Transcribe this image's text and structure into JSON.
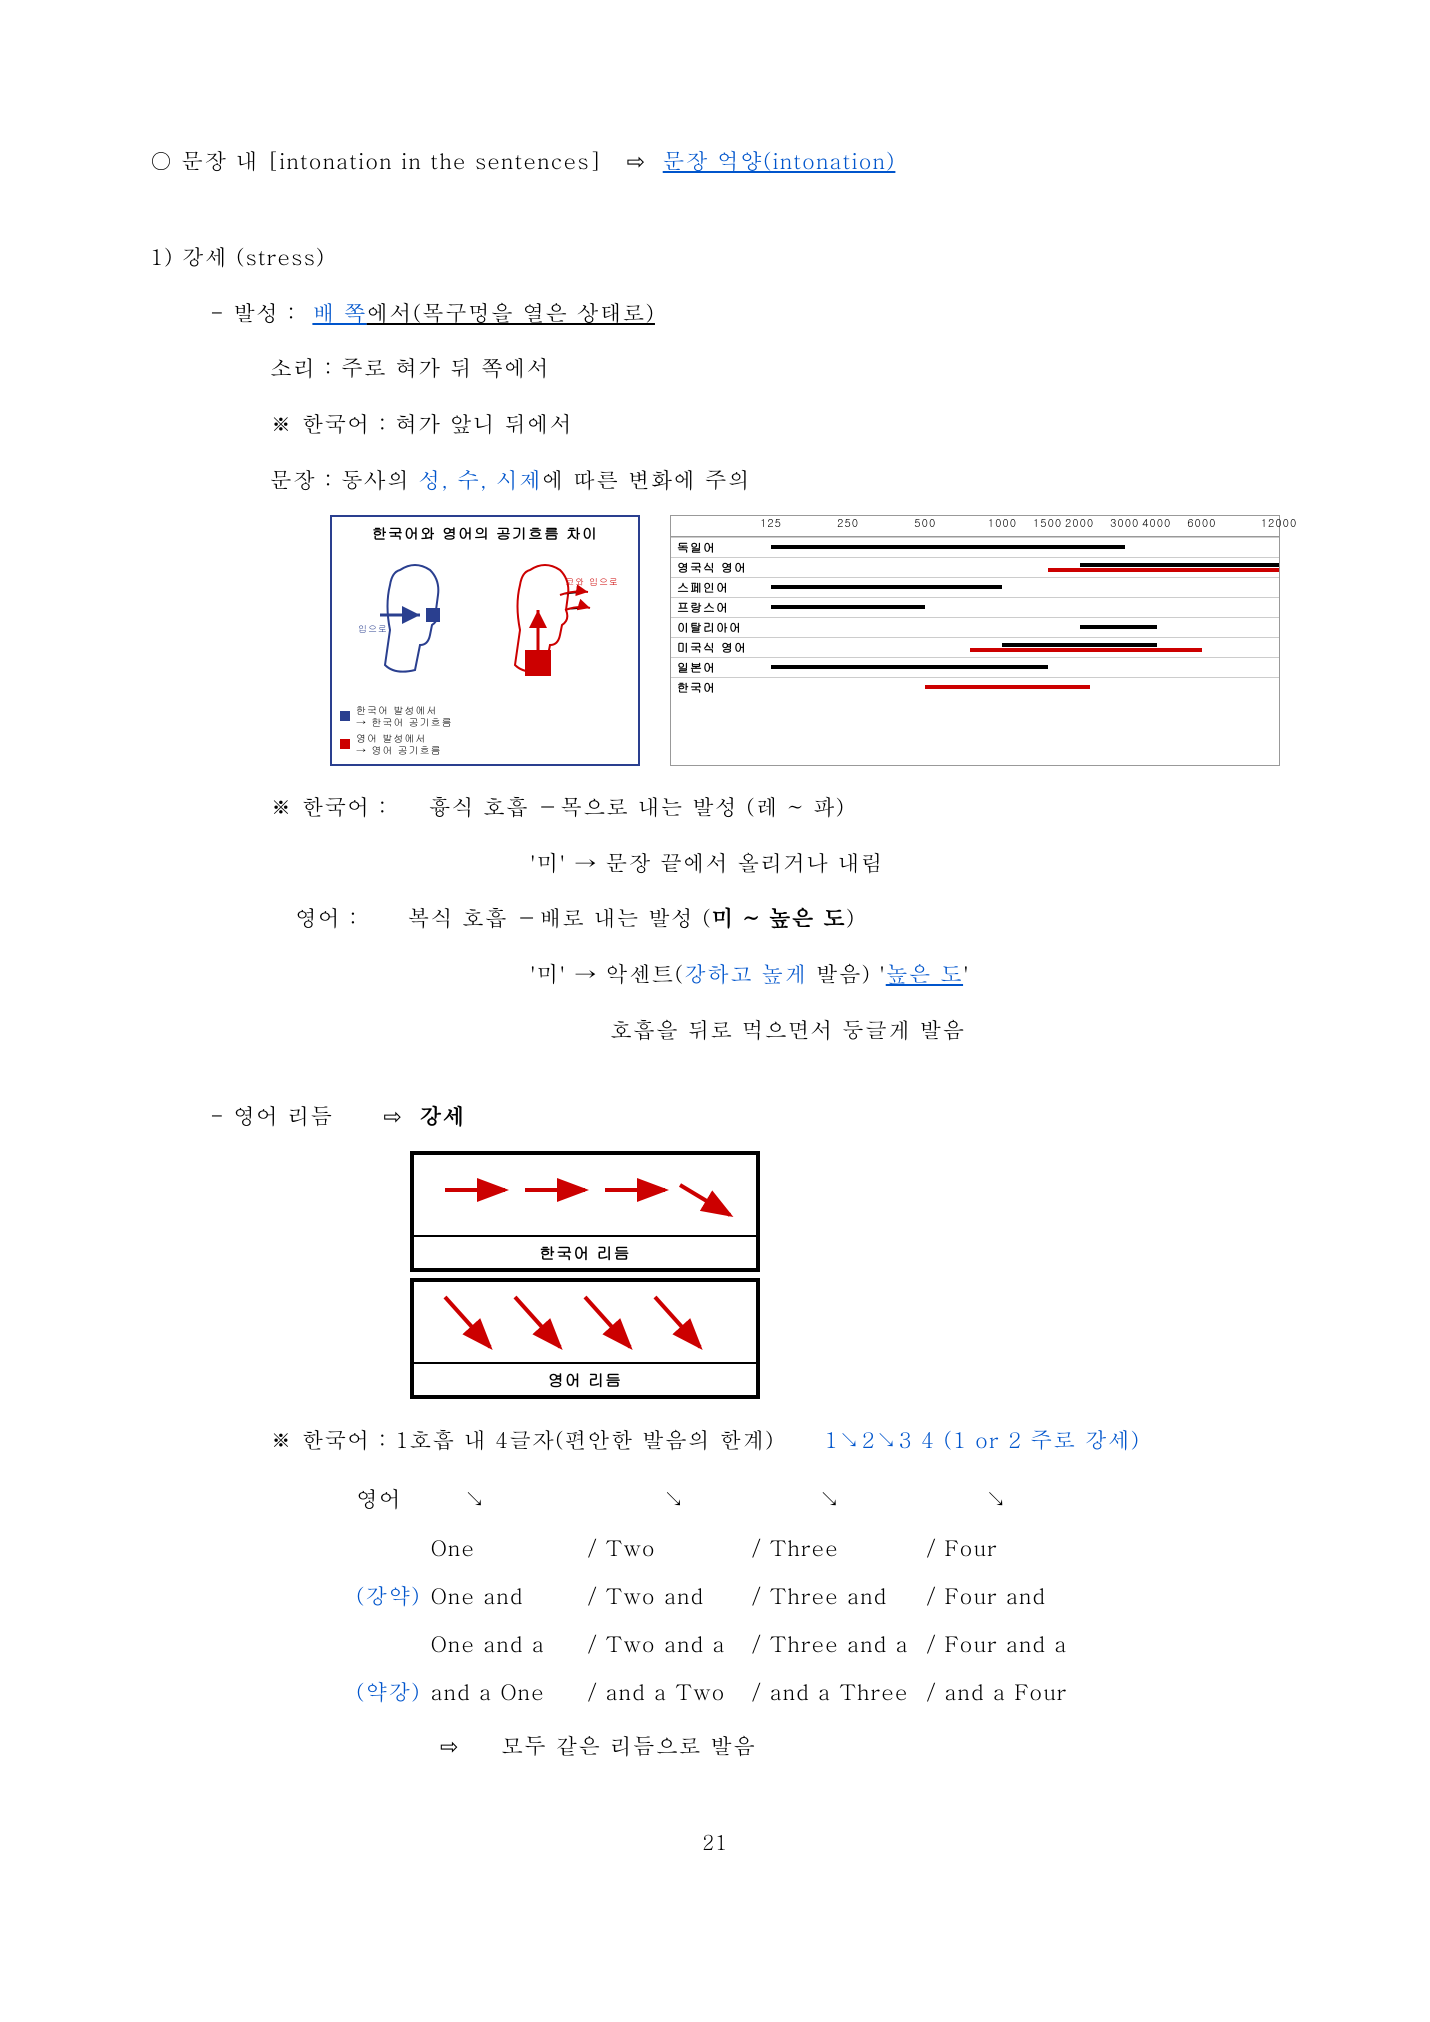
{
  "heading": {
    "bullet": "○",
    "prefix": "문장 내 [intonation in the sentences]",
    "arrow": "⇨",
    "blue_text": "문장 억양(intonation)"
  },
  "section1": {
    "num": "1) 강세 (stress)",
    "voc_label": "-   발성 :",
    "voc_blue": "배 쪽",
    "voc_rest": "에서(목구멍을 열은 상태로)",
    "sound": "소리 :  주로 혀가 뒤 쪽에서",
    "korean_note": "※ 한국어 : 혀가 앞니 뒤에서",
    "sentence_label": "문장 :  동사의 ",
    "sentence_blue": "성, 수, 시제",
    "sentence_rest": "에 따른 변화에 주의"
  },
  "airflow": {
    "title": "한국어와 영어의 공기흐름 차이",
    "left_caption": "입으로 들이마시기",
    "right_caption": "코와 입으로 들이마시기",
    "legend1a": "한국어 발성에서",
    "legend1b": "→ 한국어 공기흐름",
    "legend2a": "영어 발성에서",
    "legend2b": "→ 영어 공기흐름",
    "color_blue": "#2a3f8f",
    "color_red": "#cc0000"
  },
  "rangechart": {
    "ticks": [
      125,
      250,
      500,
      1000,
      1500,
      2000,
      3000,
      4000,
      6000,
      12000
    ],
    "xmin": 125,
    "xmax": 12000,
    "rows": [
      {
        "label": "독일어",
        "bars": [
          {
            "from": 125,
            "to": 3000,
            "color": "#000000"
          }
        ]
      },
      {
        "label": "영국식 영어",
        "bars": [
          {
            "from": 2000,
            "to": 12000,
            "color": "#000000"
          },
          {
            "from": 1500,
            "to": 12000,
            "color": "#cc0000"
          }
        ]
      },
      {
        "label": "스페인어",
        "bars": [
          {
            "from": 125,
            "to": 1000,
            "color": "#000000"
          }
        ]
      },
      {
        "label": "프랑스어",
        "bars": [
          {
            "from": 125,
            "to": 500,
            "color": "#000000"
          }
        ]
      },
      {
        "label": "이탈리아어",
        "bars": [
          {
            "from": 2000,
            "to": 4000,
            "color": "#000000"
          }
        ]
      },
      {
        "label": "미국식 영어",
        "bars": [
          {
            "from": 1000,
            "to": 4000,
            "color": "#000000"
          },
          {
            "from": 750,
            "to": 6000,
            "color": "#cc0000"
          }
        ]
      },
      {
        "label": "일본어",
        "bars": [
          {
            "from": 125,
            "to": 1500,
            "color": "#000000"
          }
        ]
      },
      {
        "label": "한국어",
        "bars": [
          {
            "from": 500,
            "to": 2200,
            "color": "#cc0000"
          }
        ]
      }
    ]
  },
  "breathing": {
    "ko_label": "※ 한국어 :",
    "ko_line1": "흉식 호흡 －목으로 내는 발성  (레 ~ 파)",
    "ko_line2": "'미' → 문장 끝에서 올리거나 내림",
    "en_label": "영어  :",
    "en_line1a": "복식 호흡 －배로 내는 발성    (",
    "en_line1b": "미 ~ 높은 도",
    "en_line1c": ")",
    "en_line2a": "'미' → 악센트(",
    "en_line2b": "강하고 높게",
    "en_line2c": " 발음) '",
    "en_line2d": "높은 도",
    "en_line2e": "'",
    "en_line3": "호흡을 뒤로 먹으면서 둥글게 발음"
  },
  "rhythm_header": {
    "prefix": "-  영어 리듬",
    "arrow": "⇨",
    "bold": "강세"
  },
  "rhythmbox": {
    "ko_label": "한국어 리듬",
    "en_label": "영어 리듬",
    "arrow_color": "#cc0000"
  },
  "rhythm_notes": {
    "line1a": "※ 한국어 : 1호흡 내 4글자(편안한 발음의 한계)",
    "line1b": "1↘2↘3 4 (1 or 2 주로 강세)",
    "en_label": "영어",
    "gy_label": "(강약)",
    "yg_label": "(약강)",
    "rows": [
      [
        "One",
        "/ Two",
        "/ Three",
        "/ Four"
      ],
      [
        "One and",
        "/ Two and",
        "/ Three and",
        "/ Four and"
      ],
      [
        "One and a",
        "/ Two and a",
        "/ Three and a",
        "/ Four and a"
      ],
      [
        "and a One",
        "/ and a Two",
        "/ and a Three",
        "/ and a Four"
      ]
    ],
    "concl_arrow": "⇨",
    "concl": "모두 같은 리듬으로 발음"
  },
  "page_number": "21"
}
